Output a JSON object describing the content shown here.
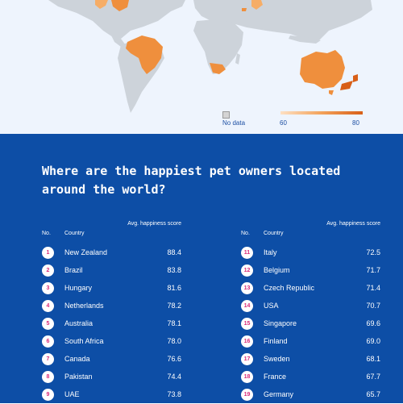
{
  "colors": {
    "map_background": "#eef4fd",
    "land": "#cdd3da",
    "highlight_light": "#f6ad67",
    "highlight_mid": "#ef8f3d",
    "highlight_dark": "#d85f18",
    "panel_blue": "#0d4ea6",
    "badge_number": "#d92a78"
  },
  "map": {
    "legend": {
      "no_data_label": "No data",
      "scale_min": "60",
      "scale_max": "80"
    }
  },
  "ranking": {
    "title": "Where are the happiest pet owners located around the world?",
    "headers": {
      "no": "No.",
      "country": "Country",
      "score": "Avg. happiness score"
    },
    "left_rows": [
      {
        "rank": "1",
        "country": "New Zealand",
        "score": "88.4"
      },
      {
        "rank": "2",
        "country": "Brazil",
        "score": "83.8"
      },
      {
        "rank": "3",
        "country": "Hungary",
        "score": "81.6"
      },
      {
        "rank": "4",
        "country": "Netherlands",
        "score": "78.2"
      },
      {
        "rank": "5",
        "country": "Australia",
        "score": "78.1"
      },
      {
        "rank": "6",
        "country": "South Africa",
        "score": "78.0"
      },
      {
        "rank": "7",
        "country": "Canada",
        "score": "76.6"
      },
      {
        "rank": "8",
        "country": "Pakistan",
        "score": "74.4"
      },
      {
        "rank": "9",
        "country": "UAE",
        "score": "73.8"
      }
    ],
    "right_rows": [
      {
        "rank": "11",
        "country": "Italy",
        "score": "72.5"
      },
      {
        "rank": "12",
        "country": "Belgium",
        "score": "71.7"
      },
      {
        "rank": "13",
        "country": "Czech Republic",
        "score": "71.4"
      },
      {
        "rank": "14",
        "country": "USA",
        "score": "70.7"
      },
      {
        "rank": "15",
        "country": "Singapore",
        "score": "69.6"
      },
      {
        "rank": "16",
        "country": "Finland",
        "score": "69.0"
      },
      {
        "rank": "17",
        "country": "Sweden",
        "score": "68.1"
      },
      {
        "rank": "18",
        "country": "France",
        "score": "67.7"
      },
      {
        "rank": "19",
        "country": "Germany",
        "score": "65.7"
      }
    ]
  }
}
